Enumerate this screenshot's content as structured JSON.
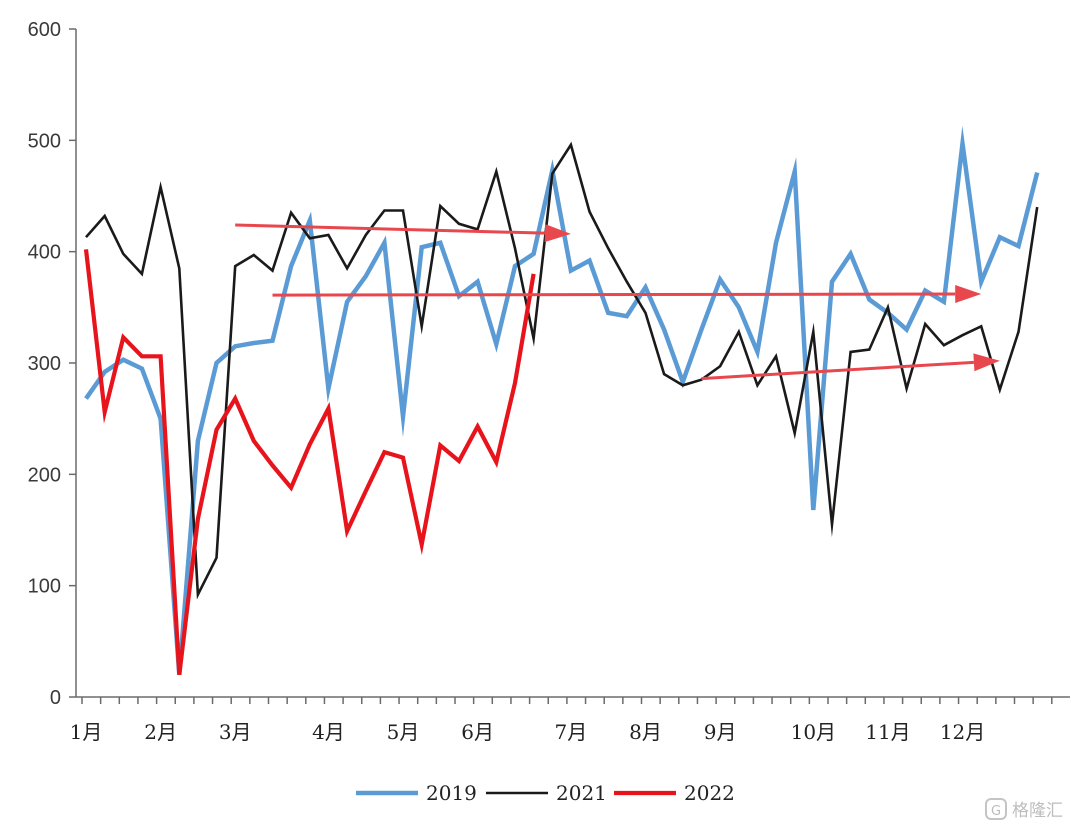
{
  "chart_data": {
    "type": "line",
    "ylim": [
      0,
      600
    ],
    "y_ticks": [
      0,
      100,
      200,
      300,
      400,
      500,
      600
    ],
    "x_points": 53,
    "month_labels": [
      {
        "label": "1月",
        "pos": 0
      },
      {
        "label": "2月",
        "pos": 4
      },
      {
        "label": "3月",
        "pos": 8
      },
      {
        "label": "4月",
        "pos": 13
      },
      {
        "label": "5月",
        "pos": 17
      },
      {
        "label": "6月",
        "pos": 21
      },
      {
        "label": "7月",
        "pos": 26
      },
      {
        "label": "8月",
        "pos": 30
      },
      {
        "label": "9月",
        "pos": 34
      },
      {
        "label": "10月",
        "pos": 39
      },
      {
        "label": "11月",
        "pos": 43
      },
      {
        "label": "12月",
        "pos": 47
      }
    ],
    "series": [
      {
        "name": "2019",
        "color": "#5b9bd5",
        "values": [
          268,
          292,
          303,
          295,
          250,
          20,
          230,
          300,
          315,
          318,
          320,
          387,
          428,
          277,
          355,
          378,
          408,
          252,
          404,
          408,
          360,
          373,
          317,
          387,
          398,
          473,
          383,
          392,
          345,
          342,
          368,
          330,
          283,
          330,
          375,
          350,
          310,
          408,
          472,
          168,
          373,
          398,
          357,
          345,
          330,
          365,
          355,
          497,
          373,
          413,
          405,
          471
        ]
      },
      {
        "name": "2021",
        "color": "#1a1a1a",
        "values": [
          413,
          432,
          398,
          380,
          458,
          385,
          92,
          125,
          387,
          397,
          383,
          435,
          412,
          415,
          385,
          415,
          437,
          437,
          333,
          441,
          425,
          420,
          472,
          403,
          322,
          470,
          496,
          436,
          403,
          373,
          345,
          290,
          280,
          285,
          297,
          328,
          280,
          306,
          237,
          328,
          155,
          310,
          312,
          350,
          277,
          335,
          316,
          325,
          333,
          276,
          328,
          440
        ]
      },
      {
        "name": "2022",
        "color": "#e8141c",
        "values": [
          402,
          256,
          323,
          306,
          306,
          20,
          160,
          240,
          268,
          230,
          208,
          188,
          227,
          259,
          149,
          185,
          220,
          215,
          137,
          226,
          212,
          243,
          211,
          282,
          380
        ]
      }
    ],
    "annotations": [
      {
        "type": "arrow",
        "color": "#e8474d",
        "from": [
          8,
          424
        ],
        "to": [
          26,
          416
        ]
      },
      {
        "type": "arrow",
        "color": "#e8474d",
        "from": [
          10,
          361
        ],
        "to": [
          48,
          362
        ]
      },
      {
        "type": "arrow",
        "color": "#e8474d",
        "from": [
          33,
          286
        ],
        "to": [
          49,
          302
        ]
      }
    ],
    "legend_position": "bottom",
    "grid": false
  },
  "watermark": {
    "text": "格隆汇"
  }
}
